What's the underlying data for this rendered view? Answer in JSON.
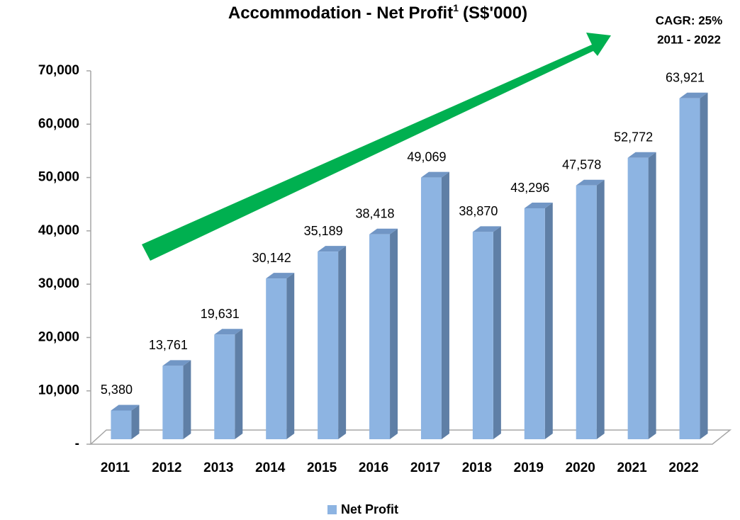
{
  "chart_data": {
    "type": "bar",
    "title": "Accommodation - Net Profit",
    "title_note": "1",
    "title_unit": "(S$'000)",
    "annotation": [
      "CAGR: 25%",
      "2011 - 2022"
    ],
    "categories": [
      "2011",
      "2012",
      "2013",
      "2014",
      "2015",
      "2016",
      "2017",
      "2018",
      "2019",
      "2020",
      "2021",
      "2022"
    ],
    "series": [
      {
        "name": "Net Profit",
        "color": "#8db4e2",
        "values": [
          5380,
          13761,
          19631,
          30142,
          35189,
          38418,
          49069,
          38870,
          43296,
          47578,
          52772,
          63921
        ],
        "value_labels": [
          "5,380",
          "13,761",
          "19,631",
          "30,142",
          "35,189",
          "38,418",
          "49,069",
          "38,870",
          "43,296",
          "47,578",
          "52,772",
          "63,921"
        ]
      }
    ],
    "ylim": [
      0,
      70000
    ],
    "yticks": [
      {
        "value": 0,
        "label": "-"
      },
      {
        "value": 10000,
        "label": "10,000"
      },
      {
        "value": 20000,
        "label": "20,000"
      },
      {
        "value": 30000,
        "label": "30,000"
      },
      {
        "value": 40000,
        "label": "40,000"
      },
      {
        "value": 50000,
        "label": "50,000"
      },
      {
        "value": 60000,
        "label": "60,000"
      },
      {
        "value": 70000,
        "label": "70,000"
      }
    ],
    "legend": "bottom"
  }
}
